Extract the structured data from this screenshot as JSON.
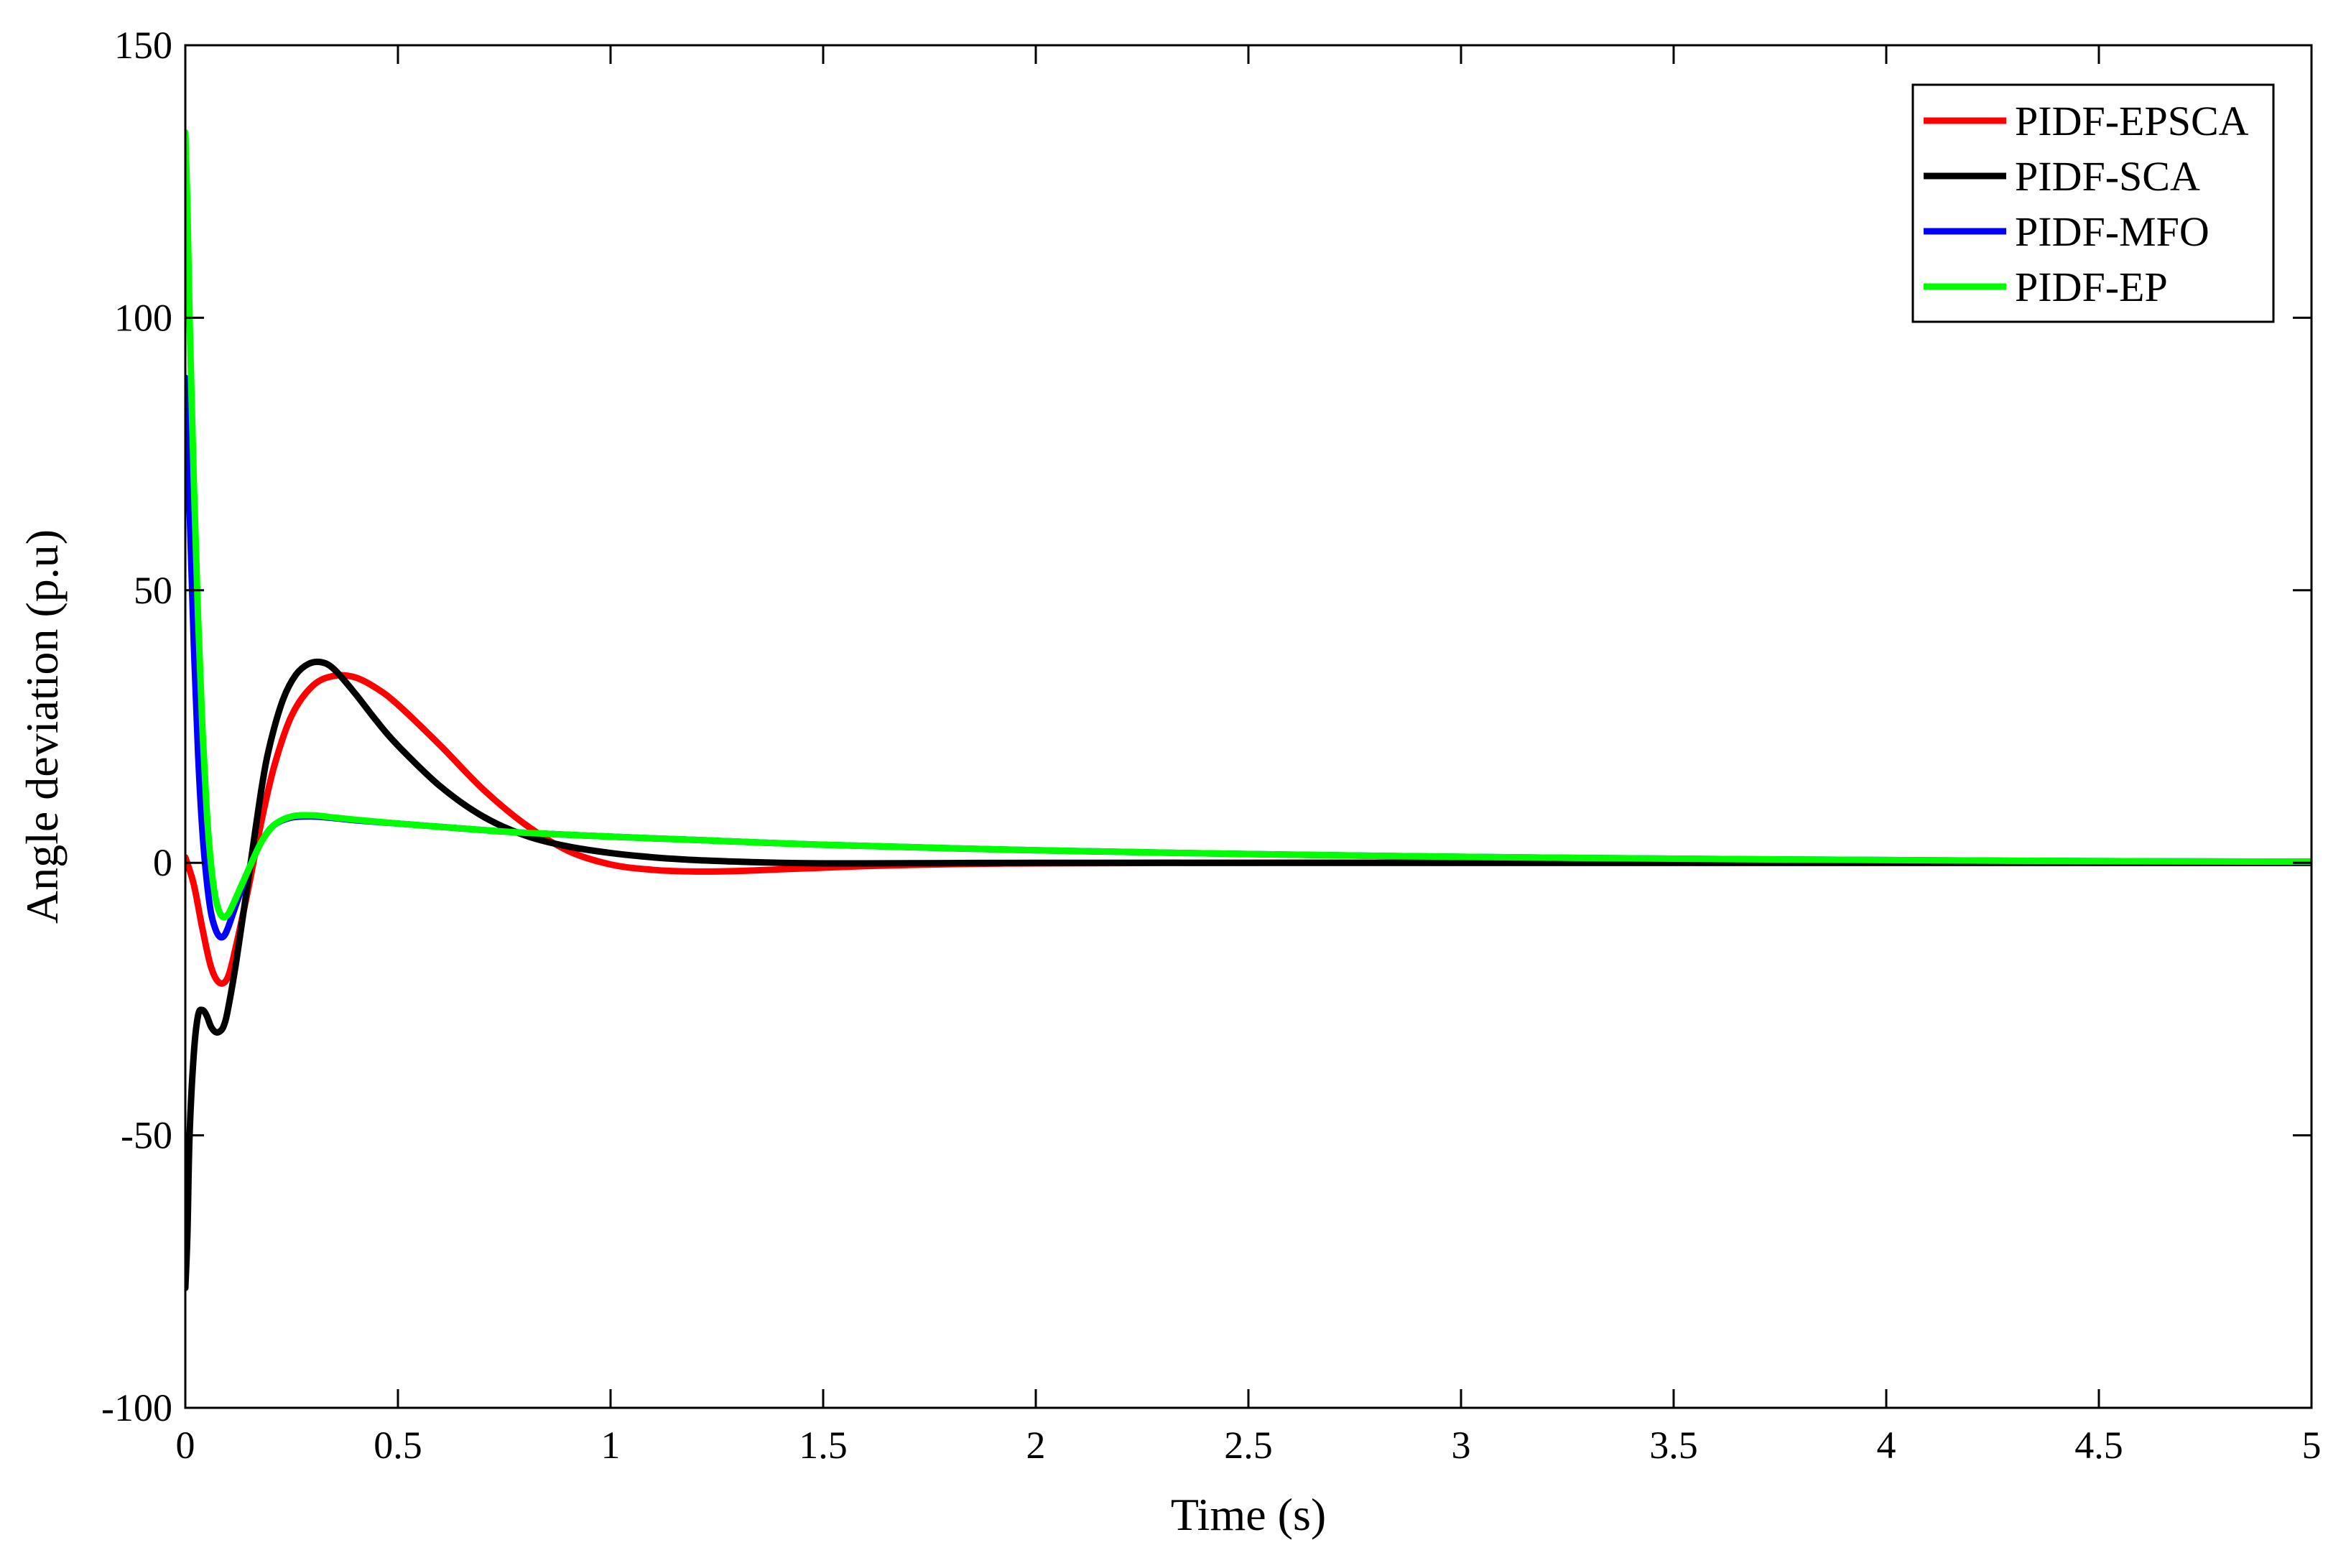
{
  "chart_data": {
    "type": "line",
    "title": "",
    "xlabel": "Time (s)",
    "ylabel": "Angle deviation (p.u)",
    "xlim": [
      0,
      5
    ],
    "ylim": [
      -100,
      150
    ],
    "xticks": [
      0,
      0.5,
      1,
      1.5,
      2,
      2.5,
      3,
      3.5,
      4,
      4.5,
      5
    ],
    "xtick_labels": [
      "0",
      "0.5",
      "1",
      "1.5",
      "2",
      "2.5",
      "3",
      "3.5",
      "4",
      "4.5",
      "5"
    ],
    "yticks": [
      -100,
      -50,
      0,
      50,
      100,
      150
    ],
    "ytick_labels": [
      "-100",
      "-50",
      "0",
      "50",
      "100",
      "150"
    ],
    "grid": false,
    "legend_position": "top-right",
    "series": [
      {
        "name": "PIDF-EPSCA",
        "color": "#ff0000",
        "x": [
          0,
          0.02,
          0.04,
          0.06,
          0.08,
          0.1,
          0.12,
          0.15,
          0.18,
          0.21,
          0.25,
          0.3,
          0.35,
          0.4,
          0.45,
          0.5,
          0.6,
          0.7,
          0.8,
          0.9,
          1.0,
          1.1,
          1.2,
          1.3,
          1.4,
          1.5,
          1.6,
          1.7,
          1.8,
          1.9,
          2.0,
          2.5,
          3.0,
          3.5,
          4.0,
          4.5,
          5.0
        ],
        "y": [
          1,
          -4,
          -12,
          -19,
          -22,
          -21,
          -15,
          -4,
          8,
          18,
          27,
          32.5,
          34.3,
          34.0,
          32.0,
          29.0,
          21.5,
          13.5,
          7.0,
          2.2,
          -0.3,
          -1.3,
          -1.6,
          -1.5,
          -1.2,
          -0.9,
          -0.6,
          -0.4,
          -0.25,
          -0.15,
          -0.1,
          0,
          0,
          0,
          0,
          0,
          0
        ]
      },
      {
        "name": "PIDF-SCA",
        "color": "#000000",
        "x": [
          0,
          0.005,
          0.01,
          0.02,
          0.03,
          0.04,
          0.05,
          0.06,
          0.07,
          0.08,
          0.09,
          0.1,
          0.12,
          0.15,
          0.18,
          0.2,
          0.23,
          0.26,
          0.29,
          0.32,
          0.35,
          0.4,
          0.45,
          0.5,
          0.6,
          0.7,
          0.8,
          0.9,
          1.0,
          1.1,
          1.2,
          1.3,
          1.4,
          1.5,
          1.6,
          1.8,
          2.0,
          2.5,
          3.0,
          3.5,
          4.0,
          4.5,
          5.0
        ],
        "y": [
          -78,
          -68,
          -50,
          -35,
          -28,
          -27,
          -28,
          -30,
          -31,
          -31,
          -30,
          -27,
          -18,
          -2,
          14,
          22,
          30,
          34.5,
          36.5,
          36.8,
          35.5,
          31,
          26,
          21.5,
          14,
          8.5,
          5,
          3,
          1.8,
          1.0,
          0.5,
          0.2,
          0,
          -0.1,
          -0.1,
          -0.05,
          0,
          0,
          0,
          0,
          0,
          0,
          0
        ]
      },
      {
        "name": "PIDF-MFO",
        "color": "#0000ff",
        "x": [
          0,
          0.01,
          0.02,
          0.03,
          0.04,
          0.05,
          0.06,
          0.07,
          0.08,
          0.09,
          0.1,
          0.12,
          0.15,
          0.18,
          0.21,
          0.25,
          0.3,
          0.35,
          0.4,
          0.5,
          0.6,
          0.7,
          0.8,
          1.0,
          1.2,
          1.5,
          2.0,
          2.5,
          3.0,
          3.5,
          4.0,
          4.5,
          5.0
        ],
        "y": [
          89,
          65,
          40,
          20,
          6,
          -3,
          -9,
          -12,
          -13.5,
          -13.5,
          -12,
          -7.5,
          -1,
          4,
          7,
          8.3,
          8.5,
          8.2,
          7.8,
          7.2,
          6.6,
          6.0,
          5.5,
          4.8,
          4.2,
          3.3,
          2.3,
          1.6,
          1.1,
          0.75,
          0.5,
          0.3,
          0.2
        ]
      },
      {
        "name": "PIDF-EP",
        "color": "#00ff00",
        "x": [
          0,
          0.005,
          0.01,
          0.02,
          0.03,
          0.04,
          0.05,
          0.06,
          0.07,
          0.08,
          0.09,
          0.1,
          0.11,
          0.13,
          0.15,
          0.18,
          0.21,
          0.25,
          0.3,
          0.35,
          0.4,
          0.5,
          0.6,
          0.7,
          0.8,
          1.0,
          1.2,
          1.5,
          2.0,
          2.5,
          3.0,
          3.5,
          4.0,
          4.5,
          5.0
        ],
        "y": [
          134,
          120,
          100,
          70,
          45,
          25,
          10,
          0,
          -6,
          -9,
          -10,
          -9.5,
          -8,
          -4.5,
          -1,
          4,
          7,
          8.5,
          8.7,
          8.3,
          7.9,
          7.2,
          6.6,
          6.0,
          5.5,
          4.8,
          4.2,
          3.3,
          2.3,
          1.6,
          1.1,
          0.75,
          0.5,
          0.3,
          0.2
        ]
      }
    ]
  }
}
